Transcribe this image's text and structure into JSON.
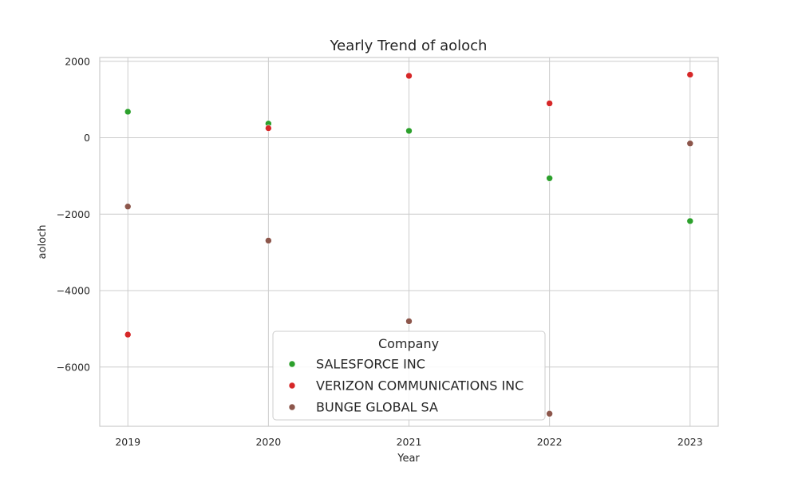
{
  "chart_data": {
    "type": "scatter",
    "title": "Yearly Trend of aoloch",
    "xlabel": "Year",
    "ylabel": "aoloch",
    "x": [
      2019,
      2020,
      2021,
      2022,
      2023
    ],
    "x_tick_labels": [
      "2019",
      "2020",
      "2021",
      "2022",
      "2023"
    ],
    "xlim": [
      2018.8,
      2023.2
    ],
    "ylim": [
      -7550,
      2100
    ],
    "y_ticks": [
      2000,
      0,
      -2000,
      -4000,
      -6000
    ],
    "y_tick_labels": [
      "2000",
      "0",
      "−2000",
      "−4000",
      "−6000"
    ],
    "grid": true,
    "legend": {
      "title": "Company",
      "placement": "bottom-center"
    },
    "series": [
      {
        "name": "SALESFORCE INC",
        "color": "#2ca02c",
        "values": [
          680,
          370,
          180,
          -1060,
          -2180
        ]
      },
      {
        "name": "VERIZON COMMUNICATIONS INC",
        "color": "#d62728",
        "values": [
          -5150,
          250,
          1620,
          900,
          1650
        ]
      },
      {
        "name": "BUNGE GLOBAL SA",
        "color": "#8c564b",
        "values": [
          -1800,
          -2690,
          -4800,
          -7220,
          -150
        ]
      }
    ]
  }
}
